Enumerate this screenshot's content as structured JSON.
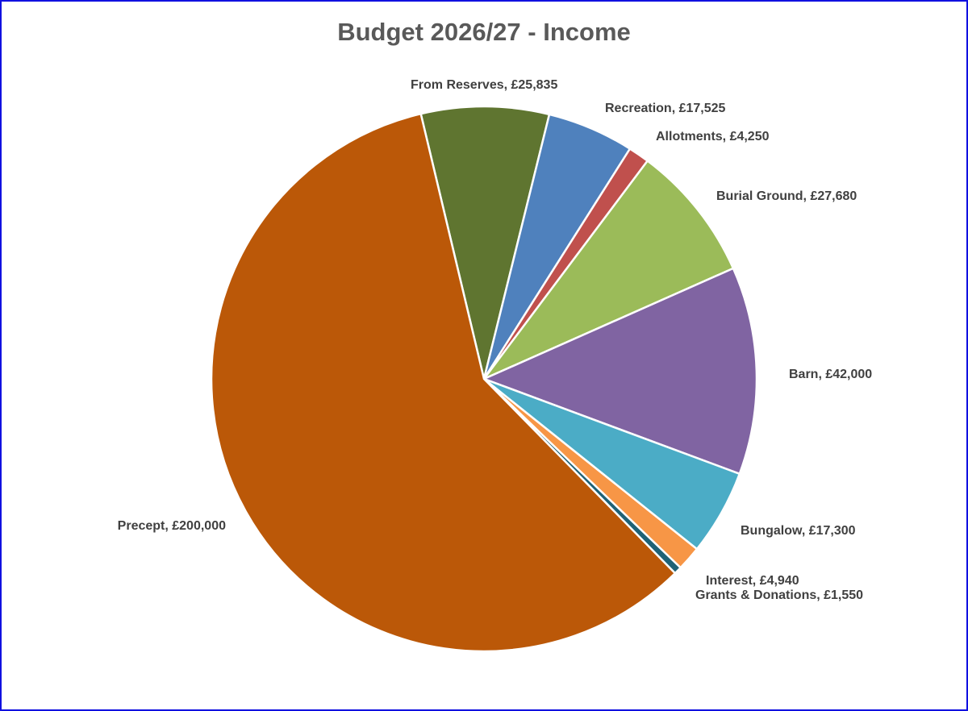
{
  "chart_data": {
    "type": "pie",
    "title": "Budget 2026/27 - Income",
    "currency": "£",
    "legend": "none (data labels)",
    "slices": [
      {
        "name": "From Reserves",
        "value": 25835,
        "color": "#5F7530",
        "label": "From Reserves, £25,835"
      },
      {
        "name": "Recreation",
        "value": 17525,
        "color": "#4F81BD",
        "label": "Recreation, £17,525"
      },
      {
        "name": "Allotments",
        "value": 4250,
        "color": "#C0504D",
        "label": "Allotments, £4,250"
      },
      {
        "name": "Burial Ground",
        "value": 27680,
        "color": "#9BBB59",
        "label": "Burial Ground, £27,680"
      },
      {
        "name": "Barn",
        "value": 42000,
        "color": "#8064A2",
        "label": "Barn, £42,000"
      },
      {
        "name": "Bungalow",
        "value": 17300,
        "color": "#4BACC6",
        "label": "Bungalow, £17,300"
      },
      {
        "name": "Interest",
        "value": 4940,
        "color": "#F79646",
        "label": "Interest, £4,940"
      },
      {
        "name": "Grants & Donations",
        "value": 1550,
        "color": "#1F6275",
        "label": "Grants & Donations, £1,550"
      },
      {
        "name": "Precept",
        "value": 200000,
        "color": "#BB5808",
        "label": "Precept, £200,000"
      }
    ]
  }
}
